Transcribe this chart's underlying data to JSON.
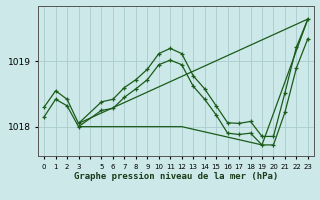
{
  "title": "Graphe pression niveau de la mer (hPa)",
  "bg_color": "#cce8e8",
  "grid_color": "#aacccc",
  "line_color": "#1a5c1a",
  "xlim": [
    -0.5,
    23.5
  ],
  "ylim": [
    1017.55,
    1019.85
  ],
  "yticks": [
    1018,
    1019
  ],
  "xtick_labels": [
    "0",
    "1",
    "2",
    "3",
    "",
    "5",
    "6",
    "7",
    "8",
    "9",
    "10",
    "11",
    "12",
    "13",
    "14",
    "15",
    "16",
    "17",
    "18",
    "19",
    "20",
    "21",
    "22",
    "23"
  ],
  "series1_x": [
    0,
    1,
    2,
    3,
    5,
    6,
    7,
    8,
    9,
    10,
    11,
    12,
    13,
    14,
    15,
    16,
    17,
    18,
    19,
    20,
    21,
    22,
    23
  ],
  "series1_y": [
    1018.3,
    1018.55,
    1018.42,
    1018.05,
    1018.38,
    1018.42,
    1018.6,
    1018.72,
    1018.88,
    1019.12,
    1019.2,
    1019.12,
    1018.78,
    1018.58,
    1018.32,
    1018.06,
    1018.05,
    1018.08,
    1017.85,
    1017.85,
    1018.52,
    1019.22,
    1019.65
  ],
  "series2_x": [
    0,
    1,
    2,
    3,
    5,
    6,
    7,
    8,
    9,
    10,
    11,
    12,
    13,
    14,
    15,
    16,
    17,
    18,
    19,
    20,
    21,
    22,
    23
  ],
  "series2_y": [
    1018.15,
    1018.42,
    1018.32,
    1018.0,
    1018.25,
    1018.28,
    1018.45,
    1018.58,
    1018.72,
    1018.95,
    1019.02,
    1018.95,
    1018.62,
    1018.42,
    1018.18,
    1017.9,
    1017.88,
    1017.9,
    1017.72,
    1017.72,
    1018.22,
    1018.9,
    1019.35
  ],
  "series3_x": [
    3,
    23
  ],
  "series3_y": [
    1018.05,
    1019.65
  ],
  "series4_x": [
    3,
    12,
    19,
    23
  ],
  "series4_y": [
    1018.0,
    1018.0,
    1017.72,
    1019.65
  ]
}
